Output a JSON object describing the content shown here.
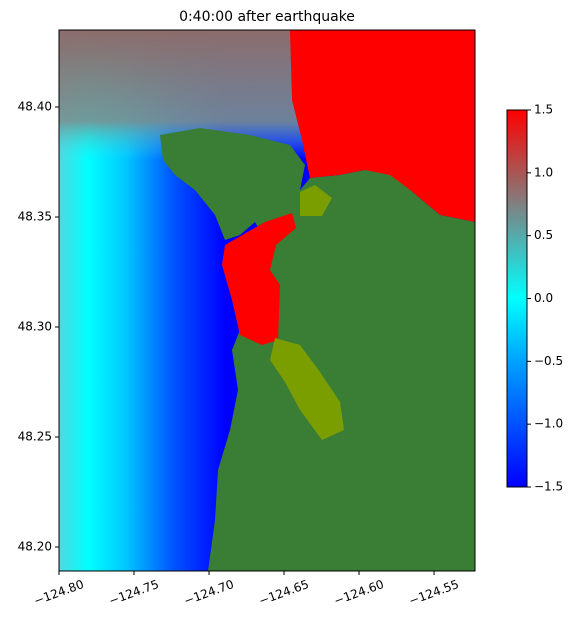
{
  "chart_data": {
    "type": "heatmap",
    "title": "0:40:00 after earthquake",
    "xlim": [
      -124.8,
      -124.5227
    ],
    "ylim": [
      48.1891,
      48.435
    ],
    "xticks": [
      {
        "value": -124.8,
        "label": "−124.80"
      },
      {
        "value": -124.75,
        "label": "−124.75"
      },
      {
        "value": -124.7,
        "label": "−124.70"
      },
      {
        "value": -124.65,
        "label": "−124.65"
      },
      {
        "value": -124.6,
        "label": "−124.60"
      },
      {
        "value": -124.55,
        "label": "−124.55"
      }
    ],
    "yticks": [
      {
        "value": 48.2,
        "label": "48.20"
      },
      {
        "value": 48.25,
        "label": "48.25"
      },
      {
        "value": 48.3,
        "label": "48.30"
      },
      {
        "value": 48.35,
        "label": "48.35"
      },
      {
        "value": 48.4,
        "label": "48.40"
      }
    ],
    "colorbar": {
      "lim": [
        -1.5,
        1.5
      ],
      "ticks": [
        {
          "value": -1.5,
          "label": "−1.5"
        },
        {
          "value": -1.0,
          "label": "−1.0"
        },
        {
          "value": -0.5,
          "label": "−0.5"
        },
        {
          "value": 0.0,
          "label": "0.0"
        },
        0.5,
        {
          "value": 1.0,
          "label": "1.0"
        },
        1.5
      ]
    }
  }
}
